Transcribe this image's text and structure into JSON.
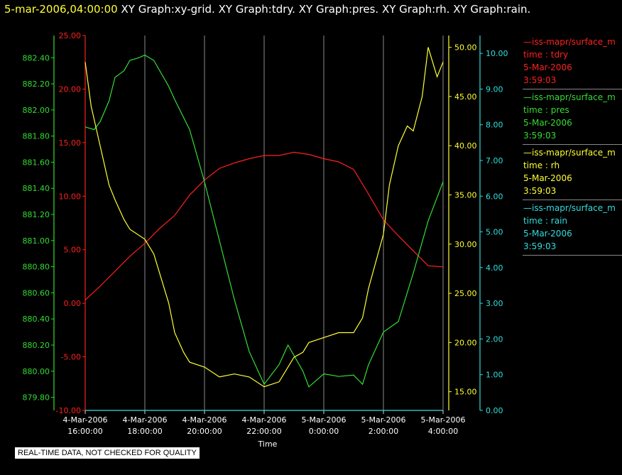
{
  "header": {
    "datetime": "5-mar-2006,04:00:00",
    "graphs": [
      "XY Graph:xy-grid.",
      "XY Graph:tdry.",
      "XY Graph:pres.",
      "XY Graph:rh.",
      "XY Graph:rain."
    ]
  },
  "legend": [
    {
      "source": "—iss-mapr/surface_m",
      "var": "time : tdry",
      "date": "5-Mar-2006",
      "time": "3:59:03",
      "color": "#ff2020"
    },
    {
      "source": "—iss-mapr/surface_m",
      "var": "time : pres",
      "date": "5-Mar-2006",
      "time": "3:59:03",
      "color": "#33dd33"
    },
    {
      "source": "—iss-mapr/surface_m",
      "var": "time : rh",
      "date": "5-Mar-2006",
      "time": "3:59:03",
      "color": "#ffff33"
    },
    {
      "source": "—iss-mapr/surface_m",
      "var": "time : rain",
      "date": "5-Mar-2006",
      "time": "3:59:03",
      "color": "#33dddd"
    }
  ],
  "footer_note": "REAL-TIME DATA, NOT CHECKED FOR QUALITY",
  "chart_data": {
    "type": "line",
    "xlabel": "Time",
    "x_range_hours": [
      16.0,
      28.0
    ],
    "x_ticks": [
      {
        "hour": 16,
        "line1": "4-Mar-2006",
        "line2": "16:00:00"
      },
      {
        "hour": 18,
        "line1": "4-Mar-2006",
        "line2": "18:00:00"
      },
      {
        "hour": 20,
        "line1": "4-Mar-2006",
        "line2": "20:00:00"
      },
      {
        "hour": 22,
        "line1": "4-Mar-2006",
        "line2": "22:00:00"
      },
      {
        "hour": 24,
        "line1": "5-Mar-2006",
        "line2": "0:00:00"
      },
      {
        "hour": 26,
        "line1": "5-Mar-2006",
        "line2": "2:00:00"
      },
      {
        "hour": 28,
        "line1": "5-Mar-2006",
        "line2": "4:00:00"
      }
    ],
    "axes": [
      {
        "id": "tdry",
        "color": "#ff2020",
        "ylim": [
          -10,
          25
        ],
        "ticks": [
          "-10.00",
          "-5.00",
          "0.00",
          "5.00",
          "10.00",
          "15.00",
          "20.00",
          "25.00"
        ]
      },
      {
        "id": "pres",
        "color": "#33dd33",
        "ylim": [
          879.7,
          882.57
        ],
        "ticks": [
          "879.80",
          "880.00",
          "880.20",
          "880.40",
          "880.60",
          "880.80",
          "881.00",
          "881.20",
          "881.40",
          "881.60",
          "881.80",
          "882.00",
          "882.20",
          "882.40"
        ]
      },
      {
        "id": "rh",
        "color": "#ffff33",
        "ylim": [
          13.1,
          51.2
        ],
        "ticks": [
          "15.00",
          "20.00",
          "25.00",
          "30.00",
          "35.00",
          "40.00",
          "45.00",
          "50.00"
        ]
      },
      {
        "id": "rain",
        "color": "#33dddd",
        "ylim": [
          0,
          10.5
        ],
        "ticks": [
          "0.00",
          "1.00",
          "2.00",
          "3.00",
          "4.00",
          "5.00",
          "6.00",
          "7.00",
          "8.00",
          "9.00",
          "10.00"
        ]
      }
    ],
    "series": [
      {
        "axis": "tdry",
        "x": [
          16.0,
          16.5,
          17.0,
          17.5,
          18.0,
          18.5,
          19.0,
          19.5,
          20.0,
          20.5,
          21.0,
          21.5,
          22.0,
          22.5,
          23.0,
          23.5,
          24.0,
          24.5,
          25.0,
          25.5,
          26.0,
          26.5,
          27.0,
          27.5,
          28.0
        ],
        "y": [
          0.3,
          1.6,
          3.0,
          4.4,
          5.6,
          7.0,
          8.2,
          10.1,
          11.5,
          12.6,
          13.1,
          13.5,
          13.8,
          13.8,
          14.1,
          13.9,
          13.5,
          13.2,
          12.5,
          10.2,
          7.8,
          6.3,
          4.9,
          3.5,
          3.4
        ]
      },
      {
        "axis": "pres",
        "x": [
          16.0,
          16.3,
          16.5,
          16.8,
          17.0,
          17.3,
          17.5,
          17.8,
          18.0,
          18.3,
          18.5,
          18.8,
          19.0,
          19.5,
          20.0,
          20.5,
          21.0,
          21.5,
          22.0,
          22.5,
          22.8,
          23.0,
          23.3,
          23.5,
          24.0,
          24.5,
          25.0,
          25.3,
          25.5,
          26.0,
          26.5,
          27.0,
          27.5,
          28.0
        ],
        "y": [
          881.87,
          881.85,
          881.91,
          882.07,
          882.25,
          882.3,
          882.38,
          882.4,
          882.42,
          882.38,
          882.3,
          882.18,
          882.08,
          881.85,
          881.45,
          881.0,
          880.55,
          880.15,
          879.9,
          880.05,
          880.2,
          880.12,
          880.0,
          879.88,
          879.98,
          879.96,
          879.97,
          879.9,
          880.05,
          880.3,
          880.38,
          880.75,
          881.15,
          881.45
        ]
      },
      {
        "axis": "rh",
        "x": [
          16.0,
          16.2,
          16.5,
          16.8,
          17.0,
          17.3,
          17.5,
          18.0,
          18.3,
          18.5,
          18.8,
          19.0,
          19.3,
          19.5,
          20.0,
          20.5,
          21.0,
          21.5,
          22.0,
          22.5,
          23.0,
          23.3,
          23.5,
          24.0,
          24.5,
          25.0,
          25.3,
          25.5,
          26.0,
          26.2,
          26.5,
          26.8,
          27.0,
          27.3,
          27.5,
          27.8,
          28.0
        ],
        "y": [
          48.5,
          44.0,
          40.0,
          36.0,
          34.5,
          32.5,
          31.5,
          30.5,
          29.0,
          27.0,
          24.0,
          21.0,
          19.0,
          18.0,
          17.5,
          16.5,
          16.8,
          16.5,
          15.5,
          16.0,
          18.5,
          19.0,
          20.0,
          20.5,
          21.0,
          21.0,
          22.5,
          25.5,
          31.0,
          36.0,
          40.0,
          42.0,
          41.5,
          45.0,
          50.0,
          47.0,
          48.5
        ]
      },
      {
        "axis": "rain",
        "x": [
          16.0,
          28.0
        ],
        "y": [
          0.0,
          0.0
        ]
      }
    ]
  }
}
